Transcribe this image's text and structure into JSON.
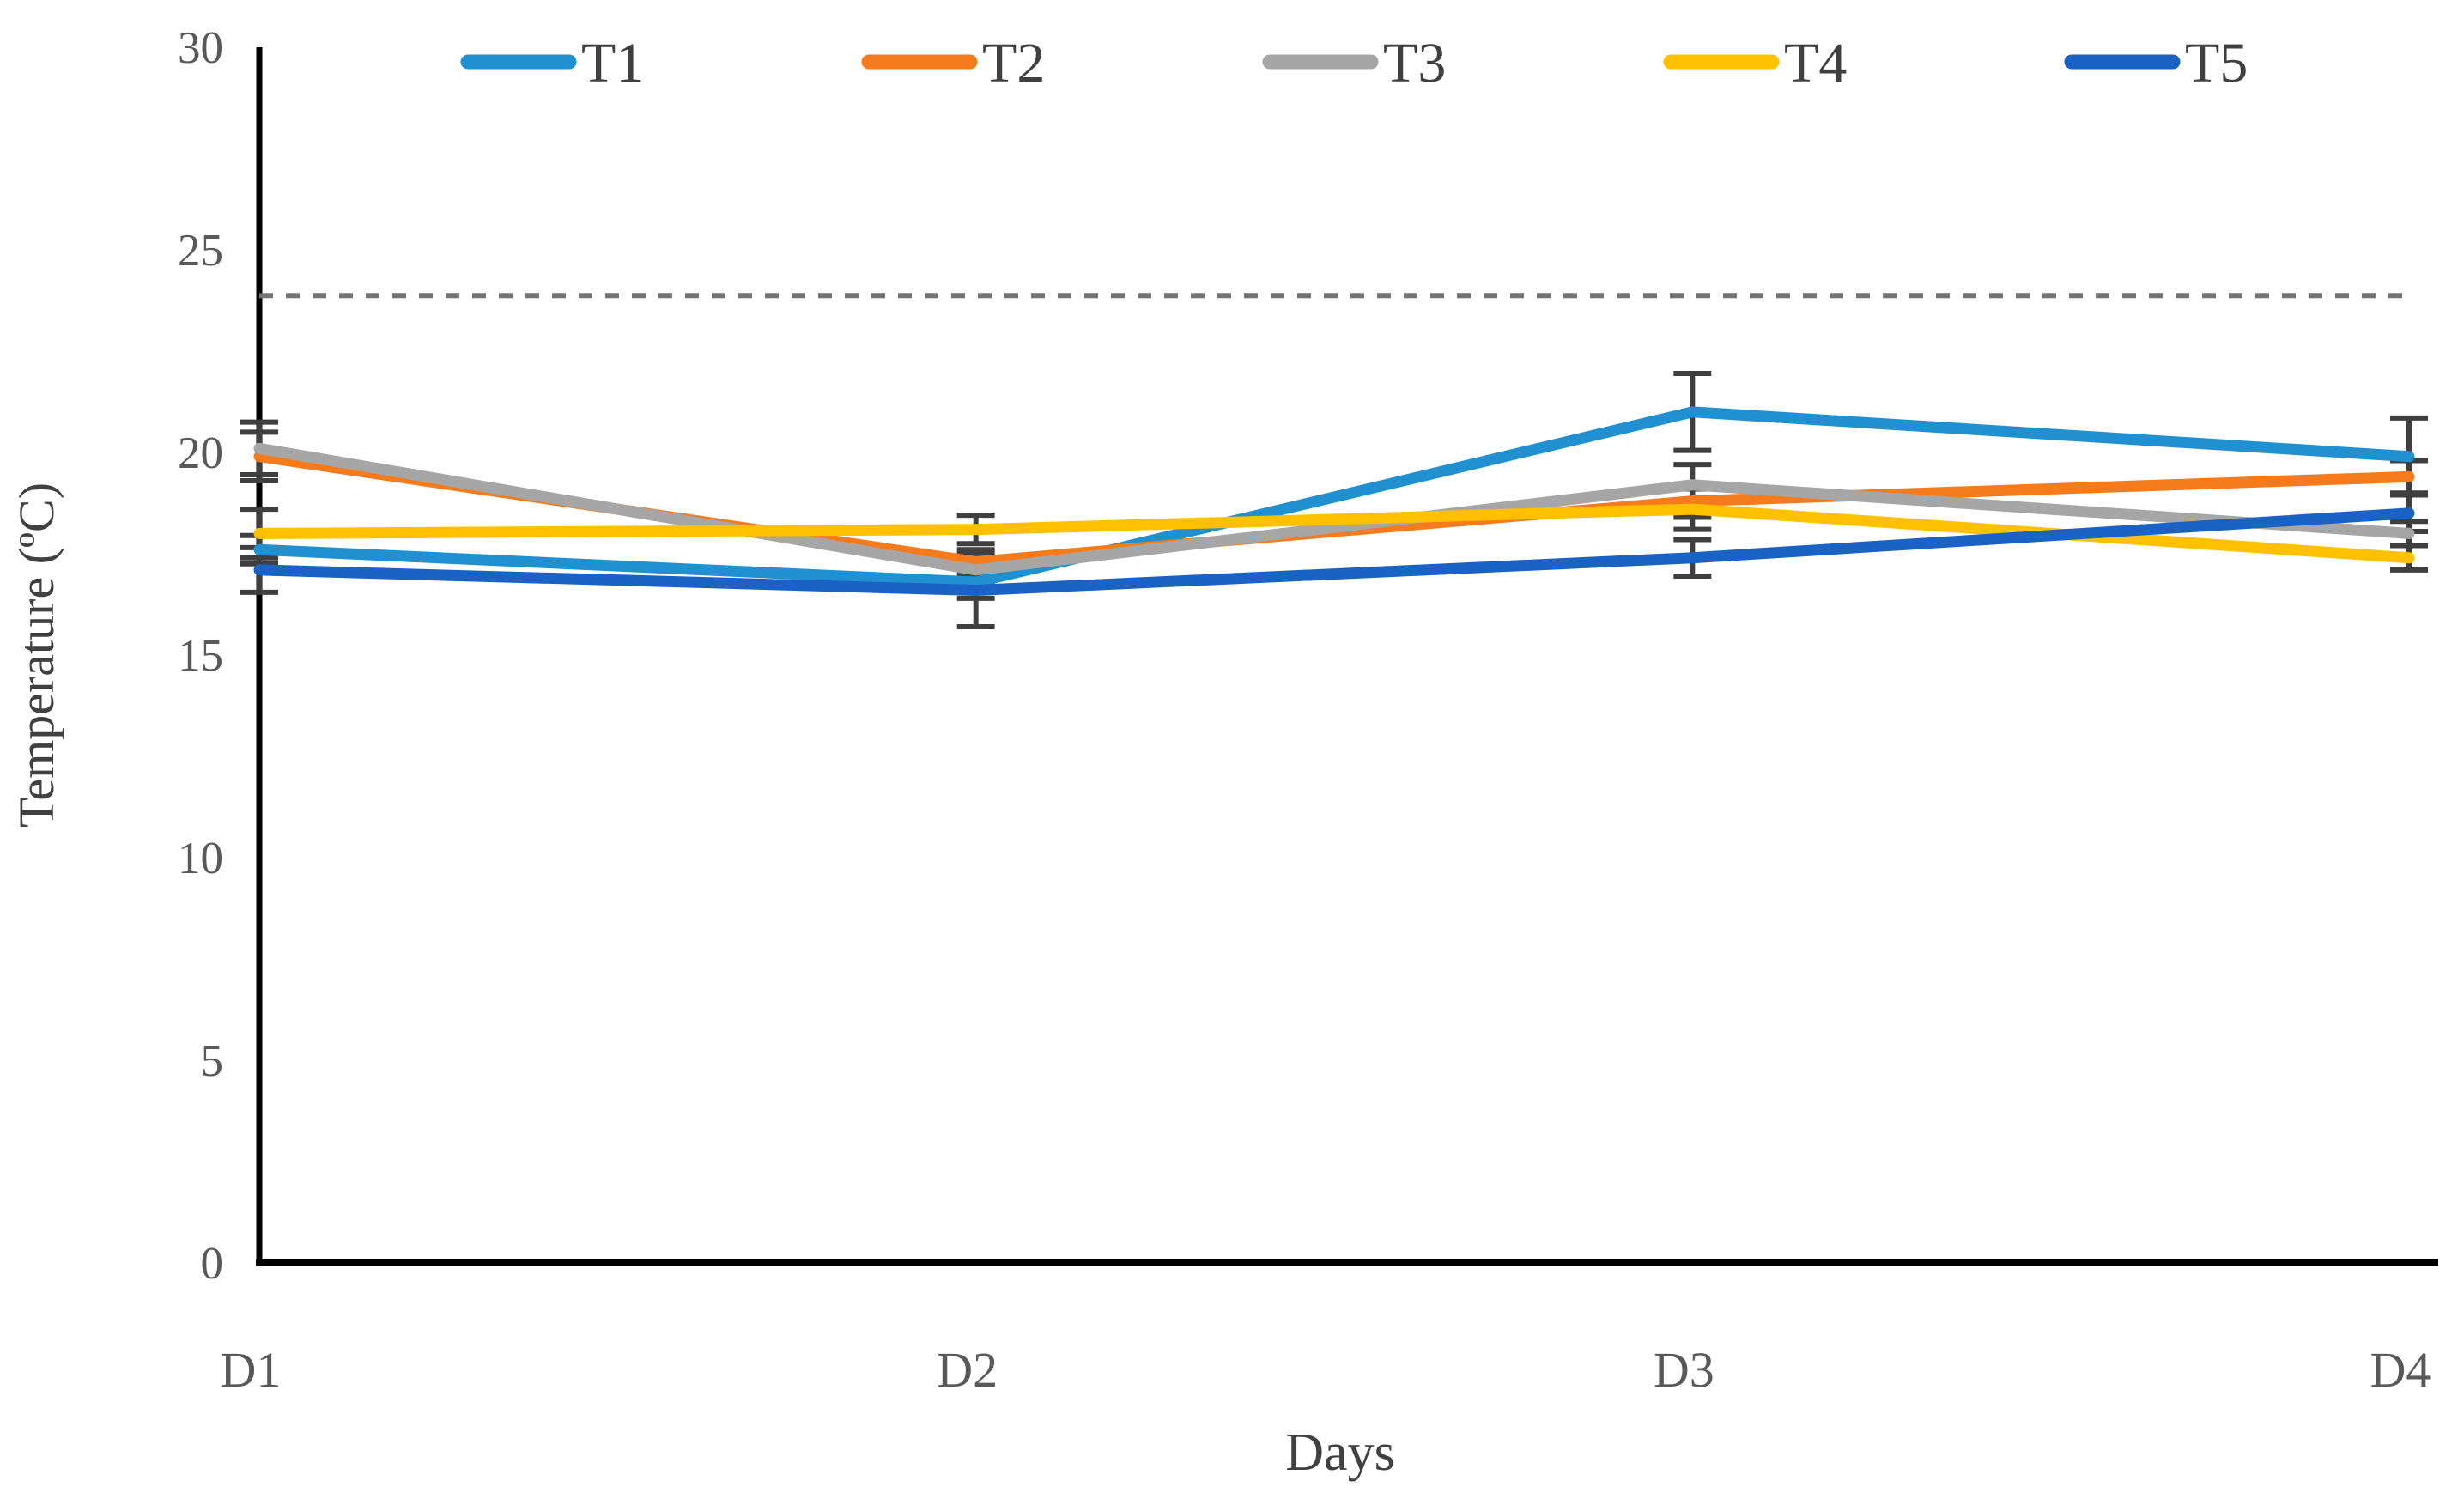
{
  "chart_data": {
    "type": "line",
    "title": "",
    "xlabel": "Days",
    "ylabel": "Temperature (ºC)",
    "categories": [
      "D1",
      "D2",
      "D3",
      "D4"
    ],
    "ylim": [
      0,
      30
    ],
    "yticks": [
      0,
      5,
      10,
      15,
      20,
      25,
      30
    ],
    "grid": false,
    "legend_position": "top",
    "reference_line": {
      "value": 24,
      "style": "dashed",
      "color": "#737373"
    },
    "error_bar_color": "#3F3F3F",
    "series": [
      {
        "name": "T1",
        "color": "#2090D0",
        "values": [
          17.6,
          16.8,
          21.0,
          19.9
        ],
        "errors": [
          0.35,
          0.4,
          0.95,
          0.95
        ]
      },
      {
        "name": "T2",
        "color": "#F57B1D",
        "values": [
          19.9,
          17.3,
          18.8,
          19.4
        ],
        "errors": [
          0.6,
          0.3,
          0.4,
          0.4
        ]
      },
      {
        "name": "T3",
        "color": "#A6A6A6",
        "values": [
          20.1,
          17.1,
          19.2,
          18.0
        ],
        "errors": [
          0.65,
          0.35,
          0.5,
          0.3
        ]
      },
      {
        "name": "T4",
        "color": "#FFC000",
        "values": [
          18.0,
          18.1,
          18.6,
          17.4
        ],
        "errors": [
          0.6,
          0.35,
          0.5,
          0.3
        ]
      },
      {
        "name": "T5",
        "color": "#1A63C5",
        "values": [
          17.1,
          16.6,
          17.4,
          18.5
        ],
        "errors": [
          0.55,
          0.9,
          0.45,
          0.45
        ]
      }
    ],
    "style": {
      "axis_color": "#000000",
      "tick_label_color": "#595959",
      "axis_title_color": "#404040",
      "legend_text_color": "#3F3F3F",
      "background": "#ffffff"
    }
  }
}
